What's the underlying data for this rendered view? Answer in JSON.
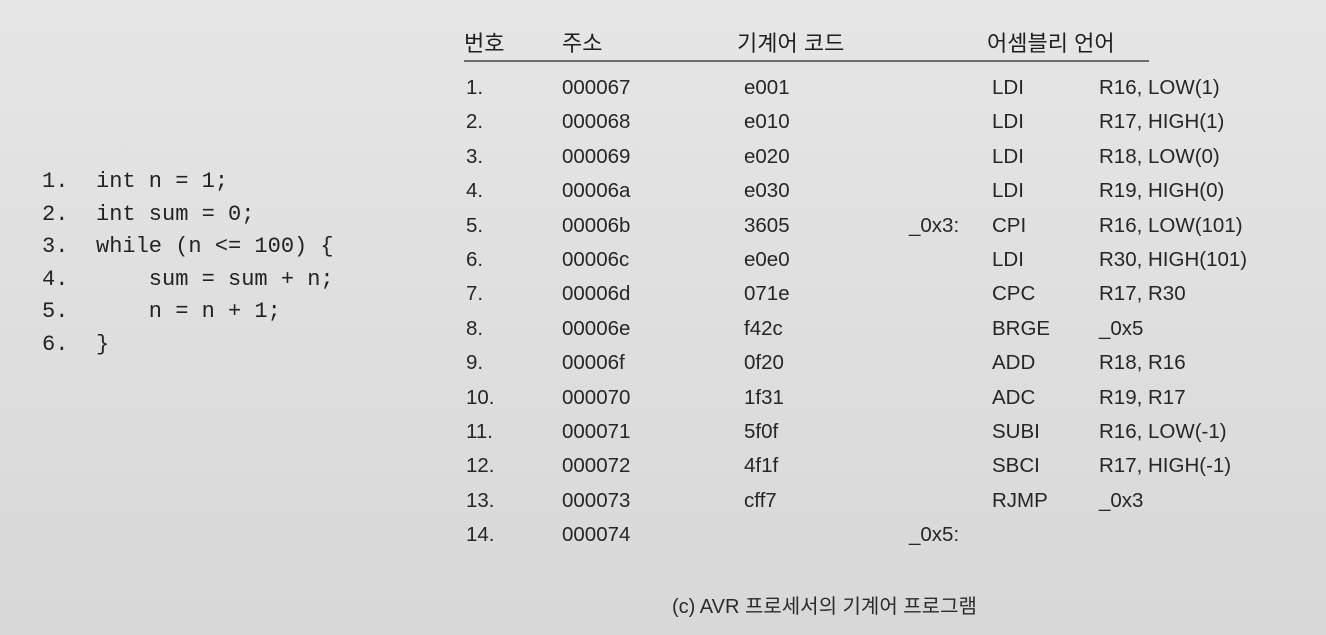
{
  "source_code": [
    {
      "num": "1.",
      "text": "int n = 1;"
    },
    {
      "num": "2.",
      "text": "int sum = 0;"
    },
    {
      "num": "3.",
      "text": "while (n <= 100) {"
    },
    {
      "num": "4.",
      "text": "    sum = sum + n;"
    },
    {
      "num": "5.",
      "text": "    n = n + 1;"
    },
    {
      "num": "6.",
      "text": "}"
    }
  ],
  "table": {
    "headers": {
      "number": "번호",
      "address": "주소",
      "machine_code": "기계어 코드",
      "assembly": "어셈블리 언어"
    },
    "rows": [
      {
        "no": "1.",
        "addr": "000067",
        "code": "e001",
        "label": "",
        "op": "LDI",
        "arg": "R16, LOW(1)"
      },
      {
        "no": "2.",
        "addr": "000068",
        "code": "e010",
        "label": "",
        "op": "LDI",
        "arg": "R17, HIGH(1)"
      },
      {
        "no": "3.",
        "addr": "000069",
        "code": "e020",
        "label": "",
        "op": "LDI",
        "arg": "R18, LOW(0)"
      },
      {
        "no": "4.",
        "addr": "00006a",
        "code": "e030",
        "label": "",
        "op": "LDI",
        "arg": "R19, HIGH(0)"
      },
      {
        "no": "5.",
        "addr": "00006b",
        "code": "3605",
        "label": "_0x3:",
        "op": "CPI",
        "arg": "R16, LOW(101)"
      },
      {
        "no": "6.",
        "addr": "00006c",
        "code": "e0e0",
        "label": "",
        "op": "LDI",
        "arg": "R30, HIGH(101)"
      },
      {
        "no": "7.",
        "addr": "00006d",
        "code": "071e",
        "label": "",
        "op": "CPC",
        "arg": "R17, R30"
      },
      {
        "no": "8.",
        "addr": "00006e",
        "code": "f42c",
        "label": "",
        "op": "BRGE",
        "arg": "_0x5"
      },
      {
        "no": "9.",
        "addr": "00006f",
        "code": "0f20",
        "label": "",
        "op": "ADD",
        "arg": "R18, R16"
      },
      {
        "no": "10.",
        "addr": "000070",
        "code": "1f31",
        "label": "",
        "op": "ADC",
        "arg": "R19, R17"
      },
      {
        "no": "11.",
        "addr": "000071",
        "code": "5f0f",
        "label": "",
        "op": "SUBI",
        "arg": "R16, LOW(-1)"
      },
      {
        "no": "12.",
        "addr": "000072",
        "code": "4f1f",
        "label": "",
        "op": "SBCI",
        "arg": "R17, HIGH(-1)"
      },
      {
        "no": "13.",
        "addr": "000073",
        "code": "cff7",
        "label": "",
        "op": "RJMP",
        "arg": "_0x3"
      },
      {
        "no": "14.",
        "addr": "000074",
        "code": "",
        "label": "_0x5:",
        "op": "",
        "arg": ""
      }
    ]
  },
  "caption": "(c) AVR 프로세서의 기계어 프로그램"
}
